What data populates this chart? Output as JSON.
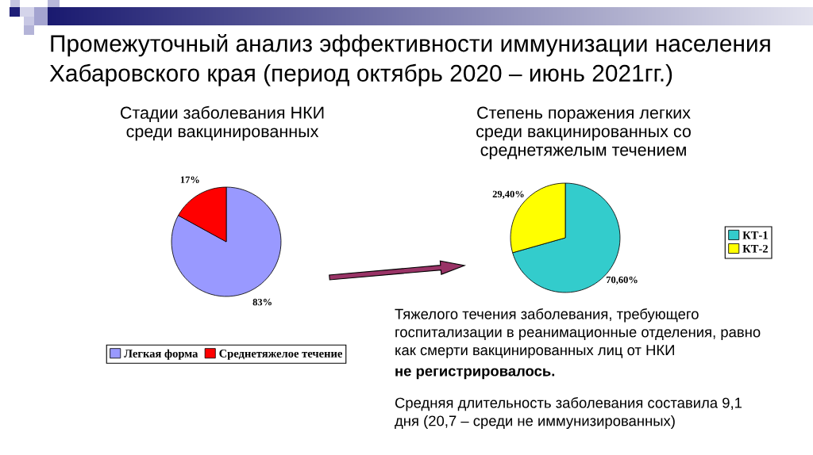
{
  "chart_data": [
    {
      "type": "other",
      "title": "Промежуточный анализ эффективности иммунизации населения Хабаровского края (период октябрь 2020 – июнь 2021гг.)"
    },
    {
      "type": "pie",
      "title": "Стадии заболевания НКИ среди вакцинированных",
      "categories": [
        "Легкая форма",
        "Среднетяжелое течение"
      ],
      "values": [
        83,
        17
      ],
      "colors": [
        "#9999ff",
        "#ff0000"
      ],
      "value_labels": [
        "83%",
        "17%"
      ],
      "legend": "bottom"
    },
    {
      "type": "pie",
      "title": "Степень поражения легких среди вакцинированных со среднетяжелым течением",
      "categories": [
        "КТ-1",
        "КТ-2"
      ],
      "values": [
        70.6,
        29.4
      ],
      "colors": [
        "#33cccc",
        "#ffff00"
      ],
      "value_labels": [
        "70,60%",
        "29,40%"
      ],
      "legend": "right"
    },
    {
      "type": "other",
      "annotations": [
        "Тяжелого течения заболевания, требующего госпитализации в реанимационные отделения, равно как смерти вакцинированных лиц от НКИ",
        "не регистрировалось.",
        "Средняя длительность заболевания составила 9,1 дня (20,7 – среди не иммунизированных)"
      ]
    }
  ]
}
